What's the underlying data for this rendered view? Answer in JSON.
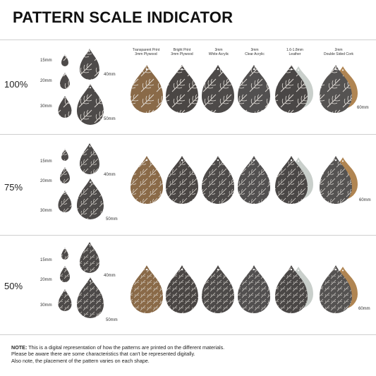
{
  "title": "PATTERN SCALE INDICATOR",
  "materials": [
    {
      "line1": "Transparent Print",
      "line2": "3mm Plywood",
      "color": "#8a6a48"
    },
    {
      "line1": "Bright Print",
      "line2": "3mm Plywood",
      "color": "#4a4644"
    },
    {
      "line1": "3mm",
      "line2": "White Acrylic",
      "color": "#4d4a49"
    },
    {
      "line1": "3mm",
      "line2": "Clear Acrylic",
      "color": "#525050"
    },
    {
      "line1": "1.6-1.8mm",
      "line2": "Leather",
      "color": "#4a4746",
      "back": "#c9cfcb"
    },
    {
      "line1": "2mm",
      "line2": "Double Sided Cork",
      "color": "#555352",
      "back": "#b08552"
    }
  ],
  "sections": [
    {
      "scale": "100%",
      "sizes": [
        "15mm",
        "20mm",
        "30mm"
      ],
      "big_sizes": [
        "40mm",
        "50mm"
      ],
      "product_size": "60mm"
    },
    {
      "scale": "75%",
      "sizes": [
        "15mm",
        "20mm",
        "30mm"
      ],
      "big_sizes": [
        "40mm",
        "50mm"
      ],
      "product_size": "60mm"
    },
    {
      "scale": "50%",
      "sizes": [
        "15mm",
        "20mm",
        "30mm"
      ],
      "big_sizes": [
        "40mm",
        "50mm"
      ],
      "product_size": "60mm"
    }
  ],
  "note": {
    "label": "NOTE:",
    "line1": " This is a digital representation of how the patterns are printed on the different materials.",
    "line2": "Please be aware there are some characteristics that can't be represented digitally.",
    "line3": "Also note, the placement of the pattern varies on each shape."
  }
}
